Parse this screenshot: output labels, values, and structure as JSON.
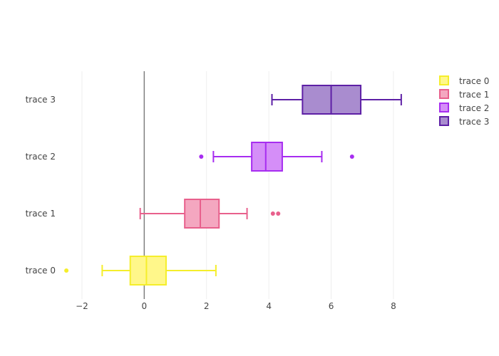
{
  "chart_data": {
    "type": "box",
    "orientation": "horizontal",
    "title": "",
    "xlabel": "",
    "ylabel": "",
    "xlim": [
      -2.8,
      9.1
    ],
    "x_ticks": [
      -2,
      0,
      2,
      4,
      6,
      8
    ],
    "x_tick_labels": [
      "−2",
      "0",
      "2",
      "4",
      "6",
      "8"
    ],
    "grid": true,
    "zero_line": true,
    "legend_position": "top-right",
    "categories": [
      "trace 0",
      "trace 1",
      "trace 2",
      "trace 3"
    ],
    "series": [
      {
        "name": "trace 0",
        "color": "#f5ee2b",
        "fill": "#fff78a",
        "lower_fence": -1.35,
        "q1": -0.45,
        "median": 0.07,
        "q3": 0.7,
        "upper_fence": 2.3,
        "outliers": [
          -2.5
        ]
      },
      {
        "name": "trace 1",
        "color": "#e8608c",
        "fill": "#f4a7c0",
        "lower_fence": -0.13,
        "q1": 1.3,
        "median": 1.8,
        "q3": 2.4,
        "upper_fence": 3.3,
        "outliers": [
          4.13,
          4.3
        ]
      },
      {
        "name": "trace 2",
        "color": "#a72df0",
        "fill": "#d58ef8",
        "lower_fence": 2.22,
        "q1": 3.45,
        "median": 3.9,
        "q3": 4.43,
        "upper_fence": 5.7,
        "outliers": [
          1.83,
          6.67
        ]
      },
      {
        "name": "trace 3",
        "color": "#5e20a6",
        "fill": "#a98ccf",
        "lower_fence": 4.1,
        "q1": 5.08,
        "median": 6.0,
        "q3": 6.95,
        "upper_fence": 8.25,
        "outliers": []
      }
    ]
  }
}
